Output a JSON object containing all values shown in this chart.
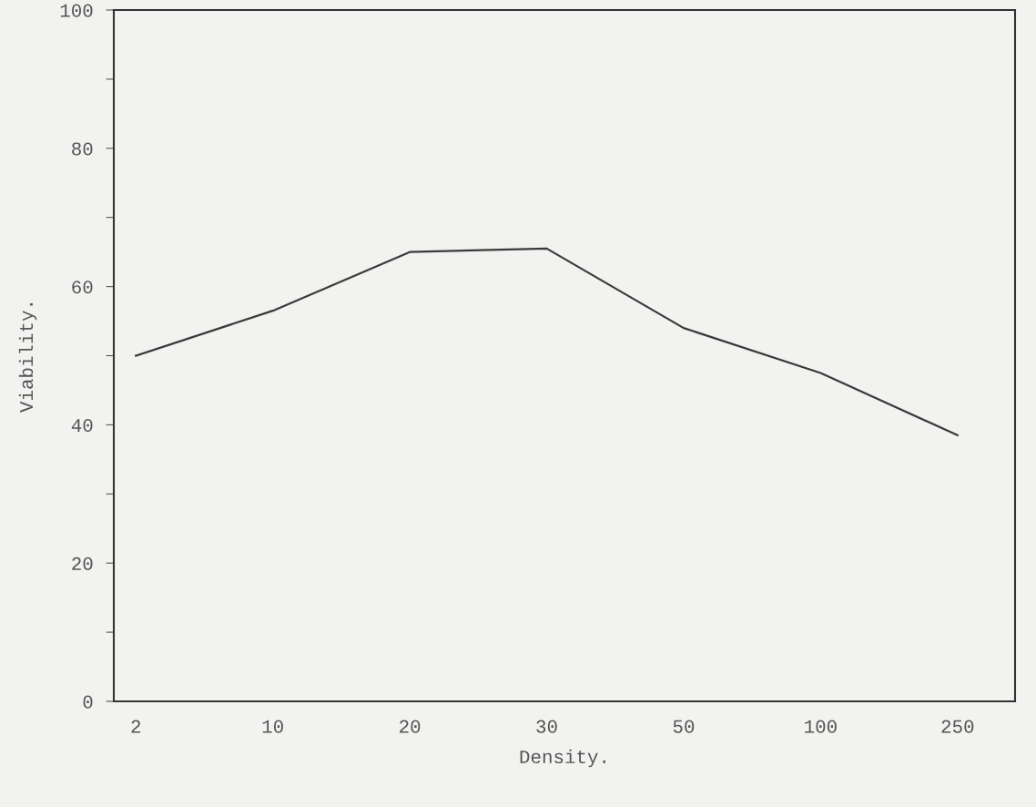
{
  "chart_data": {
    "type": "line",
    "xlabel": "Density.",
    "ylabel": "Viability.",
    "categories": [
      "2",
      "10",
      "20",
      "30",
      "50",
      "100",
      "250"
    ],
    "series": [
      {
        "color": "#3a3a3a",
        "values": [
          50,
          56.5,
          65,
          65.5,
          54,
          47.5,
          38.5
        ]
      }
    ],
    "ylim": [
      0,
      100
    ],
    "yticks": [
      0,
      {
        "value": 10,
        "label": null
      },
      20,
      {
        "value": 30,
        "label": null
      },
      40,
      {
        "value": 50,
        "label": null
      },
      60,
      {
        "value": 70,
        "label": null
      },
      80,
      {
        "value": 90,
        "label": null
      },
      100
    ],
    "grid": false,
    "marker": "none",
    "line_style": "solid"
  }
}
